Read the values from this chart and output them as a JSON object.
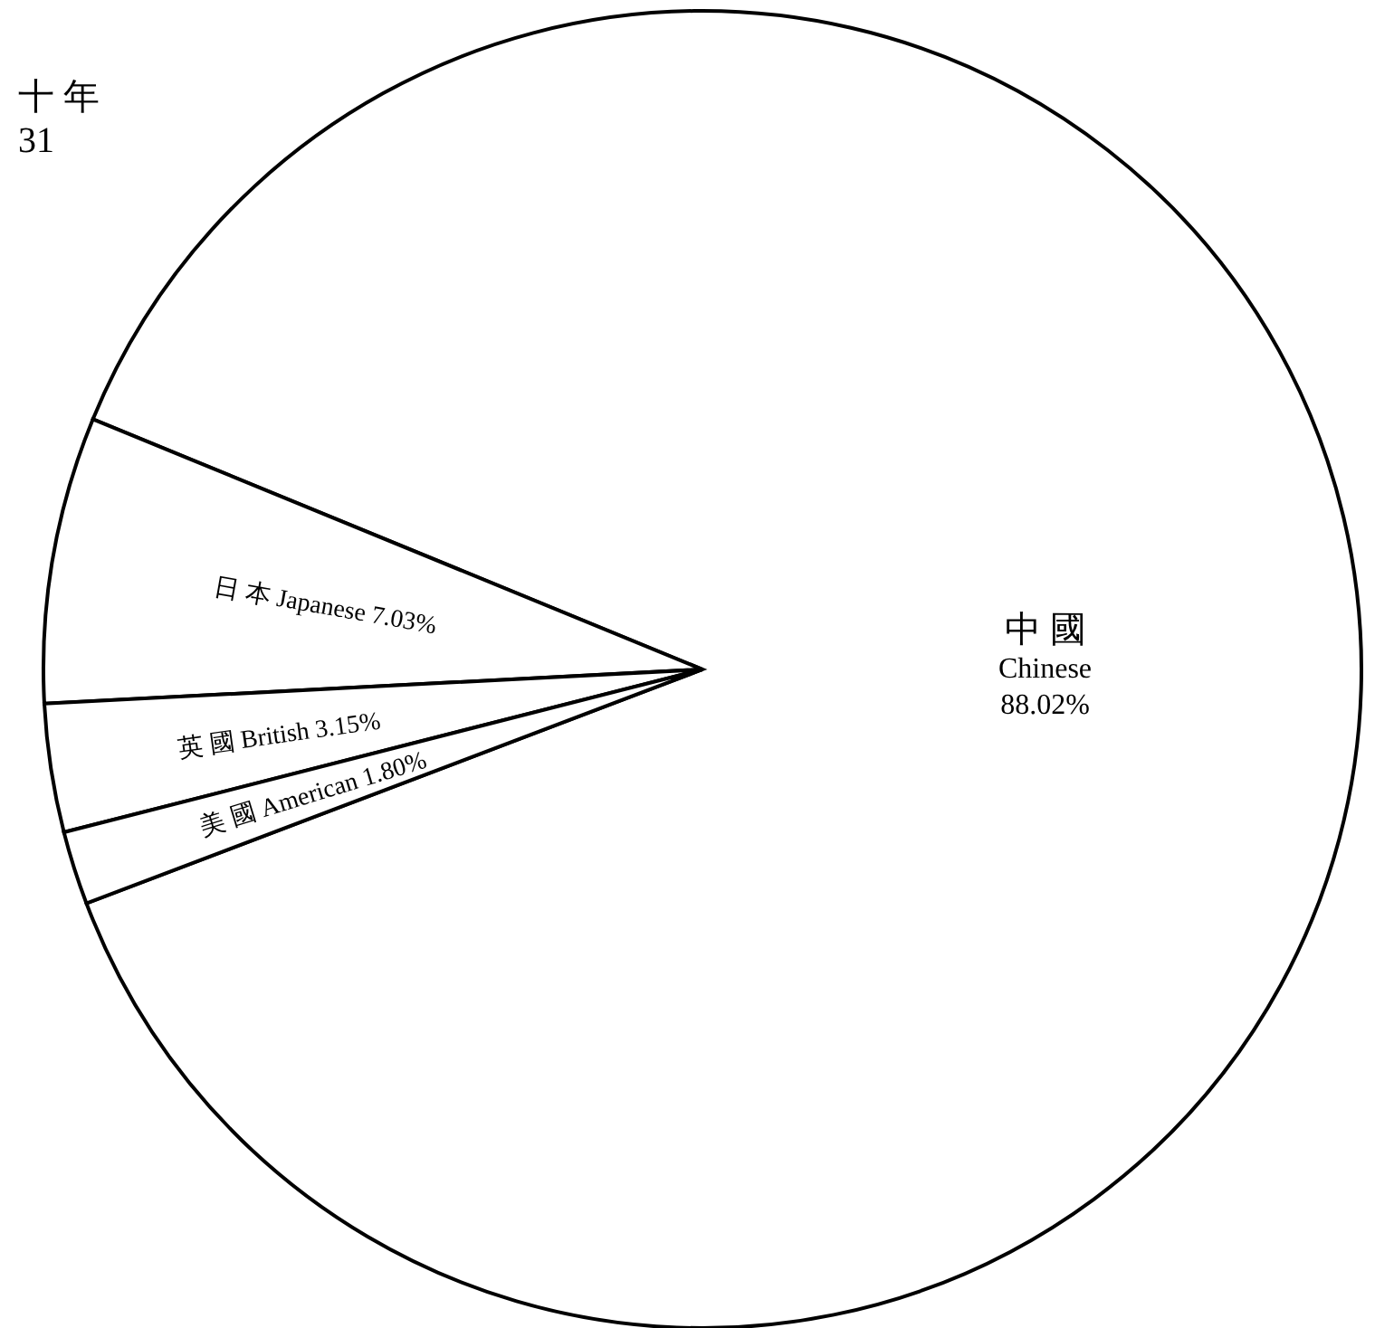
{
  "chart_data": {
    "type": "pie",
    "categories": [
      "中 國 Chinese",
      "日 本 Japanese",
      "英 國 British",
      "美 國 American"
    ],
    "values": [
      88.02,
      7.03,
      3.15,
      1.8
    ],
    "value_labels": [
      "88.02%",
      "7.03%",
      "3.15%",
      "1.80%"
    ],
    "colors": [
      "#ffffff",
      "#ffffff",
      "#ffffff",
      "#ffffff"
    ],
    "annotations": [
      "十 年",
      "31"
    ]
  }
}
